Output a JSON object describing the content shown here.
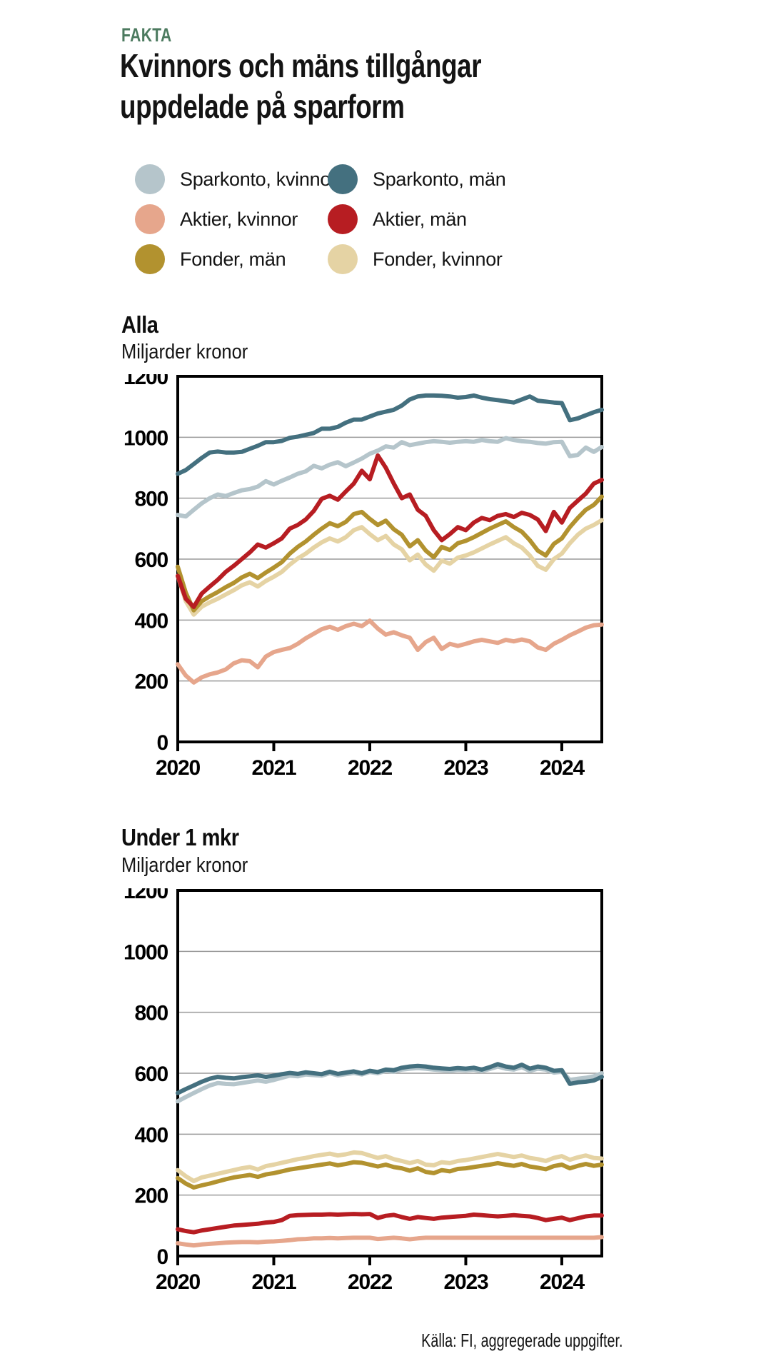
{
  "kicker": "FAKTA",
  "title_line1": "Kvinnors och mäns tillgångar",
  "title_line2": "uppdelade på sparform",
  "source": "Källa: FI, aggregerade uppgifter.",
  "colors": {
    "kicker_green": "#4c7a5f",
    "sparkonto_kvinnor": "#b5c5cb",
    "sparkonto_man": "#44707f",
    "aktier_kvinnor": "#e6a68c",
    "aktier_man": "#b71d22",
    "fonder_man": "#b2922f",
    "fonder_kvinnor": "#e5d3a4",
    "gridline": "#9a9a9a",
    "axis": "#000000"
  },
  "legend": [
    {
      "label": "Sparkonto, kvinnor",
      "color": "#b5c5cb"
    },
    {
      "label": "Sparkonto, män",
      "color": "#44707f"
    },
    {
      "label": "Aktier, kvinnor",
      "color": "#e6a68c"
    },
    {
      "label": "Aktier, män",
      "color": "#b71d22"
    },
    {
      "label": "Fonder, män",
      "color": "#b2922f"
    },
    {
      "label": "Fonder, kvinnor",
      "color": "#e5d3a4"
    }
  ],
  "chart_data": [
    {
      "type": "line",
      "title": "Alla",
      "ylabel": "Miljarder kronor",
      "ylim": [
        0,
        1200
      ],
      "yticks": [
        0,
        200,
        400,
        600,
        800,
        1000,
        1200
      ],
      "xticks": [
        "2020",
        "2021",
        "2022",
        "2023",
        "2024"
      ],
      "x_resolution": "monthly, Jan 2020 - Jun 2024",
      "grid": true,
      "legend_position": "top",
      "series": [
        {
          "name": "Sparkonto, kvinnor",
          "color": "#b5c5cb",
          "values": [
            745,
            740,
            762,
            783,
            800,
            812,
            807,
            817,
            826,
            830,
            838,
            856,
            845,
            857,
            868,
            880,
            888,
            906,
            898,
            910,
            918,
            905,
            917,
            930,
            946,
            956,
            970,
            966,
            984,
            974,
            979,
            984,
            987,
            985,
            982,
            985,
            987,
            985,
            991,
            987,
            985,
            997,
            991,
            987,
            985,
            981,
            979,
            984,
            985,
            938,
            942,
            966,
            952,
            968
          ]
        },
        {
          "name": "Sparkonto, män",
          "color": "#44707f",
          "values": [
            880,
            892,
            912,
            932,
            950,
            953,
            950,
            950,
            952,
            962,
            972,
            984,
            984,
            988,
            998,
            1002,
            1008,
            1014,
            1028,
            1028,
            1034,
            1048,
            1058,
            1058,
            1068,
            1078,
            1084,
            1090,
            1104,
            1124,
            1134,
            1137,
            1137,
            1136,
            1134,
            1130,
            1132,
            1137,
            1130,
            1125,
            1122,
            1118,
            1114,
            1124,
            1134,
            1120,
            1117,
            1114,
            1112,
            1056,
            1062,
            1072,
            1082,
            1090
          ]
        },
        {
          "name": "Fonder, kvinnor",
          "color": "#e5d3a4",
          "values": [
            545,
            462,
            418,
            444,
            458,
            470,
            484,
            498,
            514,
            524,
            510,
            528,
            542,
            558,
            582,
            602,
            618,
            638,
            655,
            668,
            658,
            672,
            695,
            705,
            682,
            662,
            676,
            648,
            632,
            596,
            615,
            582,
            562,
            595,
            585,
            605,
            612,
            622,
            635,
            648,
            660,
            672,
            652,
            638,
            612,
            578,
            565,
            600,
            618,
            652,
            680,
            700,
            712,
            728
          ]
        },
        {
          "name": "Fonder, män",
          "color": "#b2922f",
          "values": [
            575,
            490,
            432,
            462,
            478,
            492,
            508,
            522,
            540,
            552,
            538,
            556,
            572,
            590,
            618,
            640,
            658,
            680,
            700,
            718,
            708,
            722,
            748,
            755,
            732,
            712,
            726,
            698,
            680,
            642,
            662,
            628,
            606,
            640,
            630,
            652,
            660,
            672,
            686,
            700,
            712,
            724,
            705,
            690,
            662,
            628,
            612,
            650,
            668,
            705,
            735,
            762,
            778,
            805
          ]
        },
        {
          "name": "Aktier, kvinnor",
          "color": "#e6a68c",
          "values": [
            255,
            218,
            195,
            212,
            222,
            228,
            238,
            258,
            268,
            265,
            245,
            280,
            295,
            302,
            308,
            322,
            340,
            355,
            370,
            378,
            368,
            380,
            388,
            380,
            398,
            372,
            352,
            360,
            350,
            342,
            302,
            328,
            342,
            305,
            322,
            315,
            322,
            330,
            335,
            330,
            325,
            335,
            330,
            336,
            330,
            310,
            302,
            322,
            335,
            350,
            362,
            375,
            383,
            385
          ]
        },
        {
          "name": "Aktier, män",
          "color": "#b71d22",
          "values": [
            545,
            470,
            443,
            487,
            510,
            532,
            558,
            578,
            600,
            622,
            648,
            638,
            652,
            668,
            700,
            712,
            730,
            758,
            798,
            808,
            795,
            822,
            848,
            890,
            862,
            940,
            900,
            848,
            800,
            812,
            762,
            742,
            695,
            662,
            682,
            705,
            695,
            720,
            735,
            728,
            742,
            748,
            738,
            752,
            745,
            730,
            692,
            755,
            720,
            768,
            792,
            815,
            848,
            860
          ]
        }
      ]
    },
    {
      "type": "line",
      "title": "Under 1 mkr",
      "ylabel": "Miljarder kronor",
      "ylim": [
        0,
        1200
      ],
      "yticks": [
        0,
        200,
        400,
        600,
        800,
        1000,
        1200
      ],
      "xticks": [
        "2020",
        "2021",
        "2022",
        "2023",
        "2024"
      ],
      "x_resolution": "monthly, Jan 2020 - Jun 2024",
      "grid": true,
      "legend_position": "top",
      "series": [
        {
          "name": "Sparkonto, kvinnor",
          "color": "#b5c5cb",
          "values": [
            508,
            522,
            535,
            548,
            560,
            568,
            565,
            564,
            568,
            572,
            576,
            572,
            578,
            585,
            592,
            590,
            596,
            594,
            592,
            600,
            593,
            597,
            601,
            596,
            604,
            600,
            608,
            605,
            612,
            615,
            617,
            615,
            612,
            610,
            608,
            611,
            610,
            612,
            607,
            614,
            622,
            615,
            612,
            620,
            608,
            615,
            612,
            602,
            605,
            578,
            582,
            585,
            590,
            600
          ]
        },
        {
          "name": "Sparkonto, män",
          "color": "#44707f",
          "values": [
            535,
            548,
            560,
            572,
            582,
            588,
            585,
            583,
            587,
            590,
            593,
            588,
            592,
            597,
            601,
            598,
            603,
            600,
            597,
            605,
            598,
            602,
            606,
            600,
            608,
            604,
            612,
            610,
            618,
            622,
            624,
            622,
            618,
            616,
            614,
            617,
            615,
            618,
            612,
            620,
            630,
            622,
            618,
            628,
            615,
            622,
            618,
            608,
            610,
            565,
            570,
            572,
            576,
            588
          ]
        },
        {
          "name": "Fonder, kvinnor",
          "color": "#e5d3a4",
          "values": [
            282,
            262,
            246,
            258,
            264,
            270,
            276,
            282,
            288,
            292,
            284,
            295,
            300,
            306,
            312,
            318,
            322,
            328,
            332,
            336,
            330,
            334,
            340,
            338,
            330,
            322,
            328,
            318,
            312,
            305,
            312,
            300,
            298,
            308,
            305,
            312,
            315,
            320,
            325,
            330,
            335,
            330,
            325,
            330,
            322,
            318,
            312,
            322,
            328,
            316,
            324,
            330,
            322,
            320
          ]
        },
        {
          "name": "Fonder, män",
          "color": "#b2922f",
          "values": [
            256,
            238,
            225,
            232,
            238,
            245,
            252,
            258,
            262,
            266,
            260,
            268,
            272,
            278,
            284,
            288,
            292,
            296,
            300,
            304,
            298,
            302,
            308,
            306,
            300,
            294,
            300,
            292,
            288,
            280,
            288,
            276,
            272,
            282,
            278,
            286,
            288,
            292,
            296,
            300,
            305,
            300,
            296,
            302,
            294,
            290,
            285,
            295,
            300,
            288,
            296,
            302,
            296,
            300
          ]
        },
        {
          "name": "Aktier, kvinnor",
          "color": "#e6a68c",
          "values": [
            42,
            38,
            35,
            38,
            40,
            42,
            44,
            45,
            46,
            46,
            45,
            47,
            48,
            50,
            52,
            55,
            56,
            58,
            58,
            59,
            58,
            59,
            60,
            60,
            60,
            56,
            58,
            60,
            58,
            55,
            58,
            60,
            60,
            60,
            60,
            60,
            60,
            60,
            60,
            60,
            60,
            60,
            60,
            60,
            60,
            60,
            60,
            60,
            60,
            60,
            60,
            60,
            60,
            62
          ]
        },
        {
          "name": "Aktier, män",
          "color": "#b71d22",
          "values": [
            88,
            82,
            78,
            84,
            88,
            92,
            96,
            100,
            102,
            104,
            106,
            110,
            112,
            118,
            132,
            134,
            135,
            136,
            136,
            137,
            136,
            137,
            138,
            137,
            138,
            125,
            132,
            135,
            128,
            122,
            128,
            125,
            122,
            126,
            128,
            130,
            132,
            136,
            134,
            132,
            130,
            132,
            134,
            132,
            130,
            125,
            118,
            122,
            126,
            118,
            124,
            130,
            133,
            133
          ]
        }
      ]
    }
  ]
}
